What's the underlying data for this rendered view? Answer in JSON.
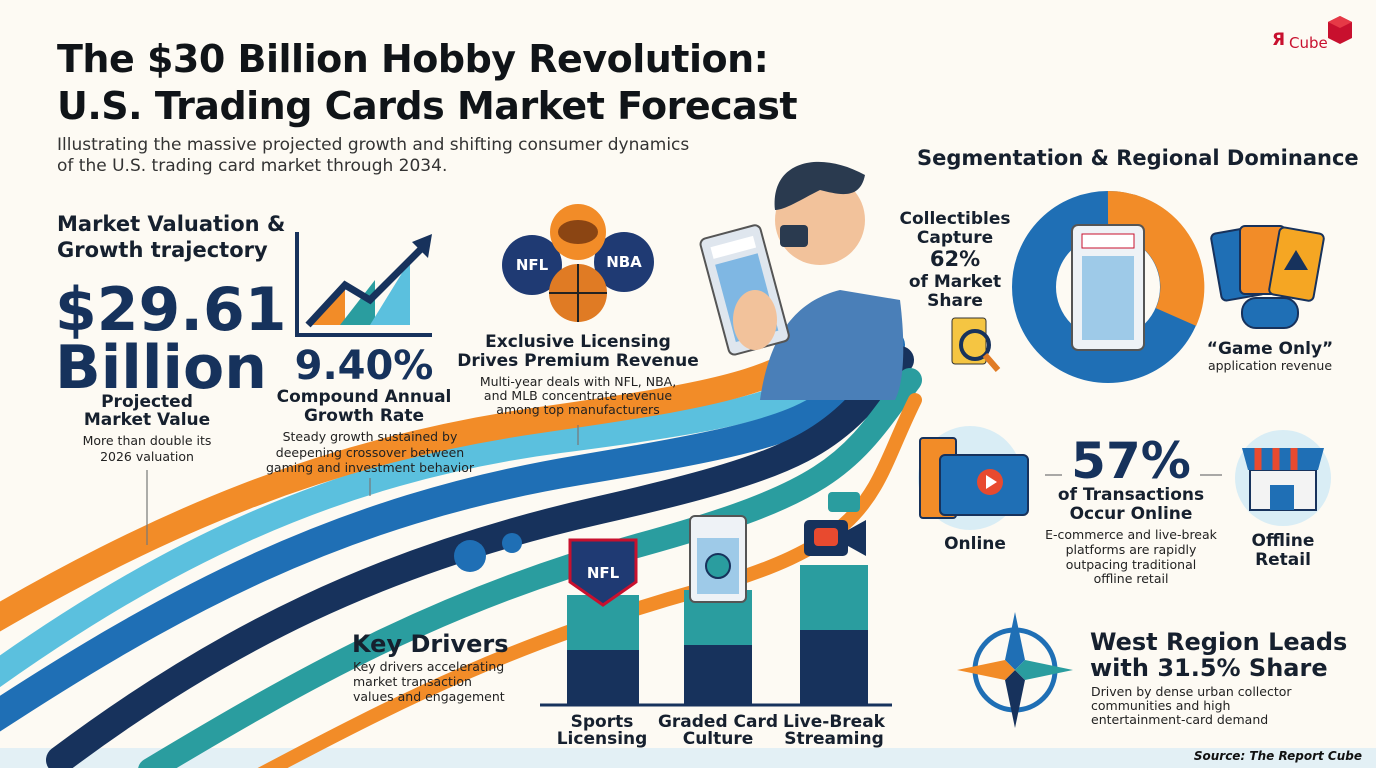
{
  "logo": {
    "mark": "Я",
    "text": "Cube"
  },
  "header": {
    "title": [
      "The $30 Billion Hobby Revolution:",
      "U.S. Trading Cards Market Forecast"
    ],
    "subtitle": [
      "Illustrating the massive projected growth and shifting consumer dynamics",
      "of the U.S. trading card market through 2034."
    ]
  },
  "valuation": {
    "heading": [
      "Market Valuation &",
      "Growth trajectory"
    ],
    "value": [
      "$29.61",
      "Billion"
    ],
    "label": [
      "Projected",
      "Market Value"
    ],
    "note": [
      "More than double its",
      "2026 valuation"
    ]
  },
  "cagr": {
    "value": "9.40%",
    "label": [
      "Compound Annual",
      "Growth Rate"
    ],
    "note": [
      "Steady growth sustained by",
      "deepening crossover between",
      "gaming and investment behavior"
    ]
  },
  "licensing": {
    "logos": [
      "NFL",
      "NBA"
    ],
    "heading": [
      "Exclusive Licensing",
      "Drives Premium Revenue"
    ],
    "note": [
      "Multi-year deals with NFL, NBA,",
      "and MLB concentrate revenue",
      "among top manufacturers"
    ]
  },
  "segmentation": {
    "heading": "Segmentation & Regional Dominance",
    "collectibles": [
      "Collectibles",
      "Capture",
      "62%",
      "of Market",
      "Share"
    ],
    "game_only": "“Game Only”",
    "game_only_note": "application revenue"
  },
  "online": {
    "value": "57%",
    "label": [
      "of Transactions",
      "Occur Online"
    ],
    "note": [
      "E-commerce and live-break",
      "platforms are rapidly",
      "outpacing traditional",
      "offline retail"
    ],
    "online": "Online",
    "offline": [
      "Offline",
      "Retail"
    ]
  },
  "region": {
    "heading": [
      "West Region Leads",
      "with 31.5% Share"
    ],
    "note": [
      "Driven by dense urban collector",
      "communities and high",
      "entertainment-card demand"
    ]
  },
  "drivers": {
    "heading": "Key Drivers",
    "note": [
      "Key drivers accelerating",
      "market transaction",
      "values and engagement"
    ],
    "badge": "NFL",
    "items": [
      [
        "Sports",
        "Licensing"
      ],
      [
        "Graded Card",
        "Culture"
      ],
      [
        "Live-Break",
        "Streaming"
      ]
    ]
  },
  "footer": {
    "source": "Source: The Report Cube"
  }
}
